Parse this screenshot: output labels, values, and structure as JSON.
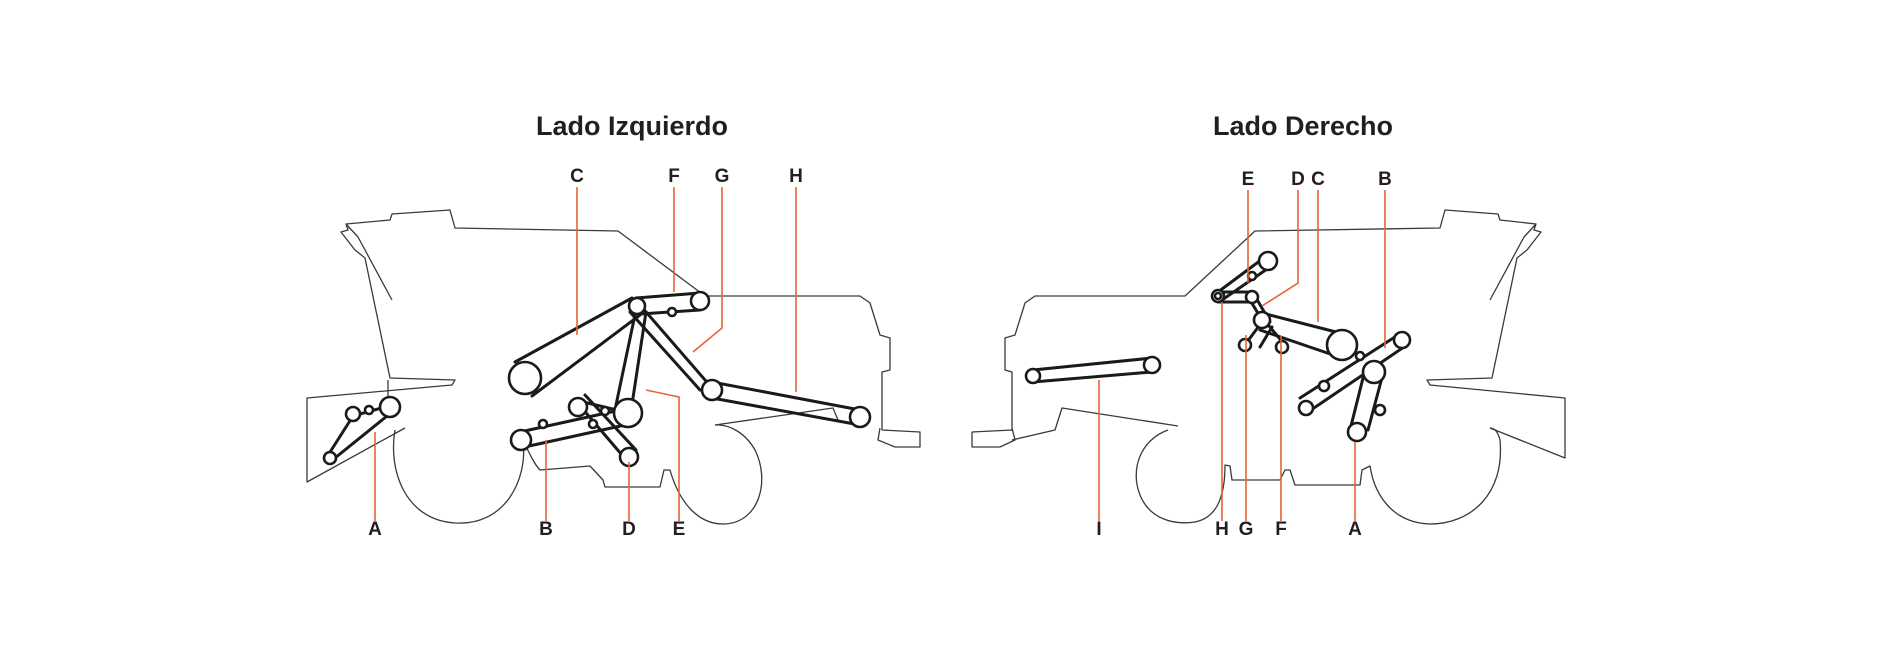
{
  "titles": {
    "left": "Lado Izquierdo",
    "right": "Lado Derecho"
  },
  "left_labels": {
    "top": [
      "C",
      "F",
      "G",
      "H"
    ],
    "bottom": [
      "A",
      "B",
      "D",
      "E"
    ]
  },
  "right_labels": {
    "top": [
      "E",
      "D",
      "C",
      "B"
    ],
    "bottom": [
      "I",
      "H",
      "G",
      "F",
      "A"
    ]
  },
  "colors": {
    "leader": "#e8623b",
    "outline": "#3a3a3a",
    "belt": "#1a1a1a",
    "text": "#231f20"
  }
}
